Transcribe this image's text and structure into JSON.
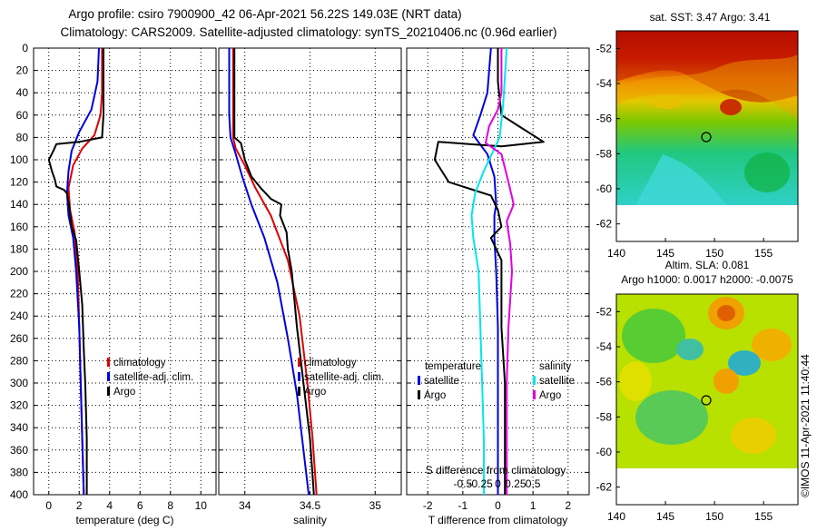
{
  "header": {
    "title_line1": "Argo profile: csiro 7900900_42 06-Apr-2021 56.22S 149.03E (NRT data)",
    "title_line2": "Climatology: CARS2009. Satellite-adjusted climatology: synTS_20210406.nc (0.96d earlier)"
  },
  "colors": {
    "climatology": "#dd0000",
    "satellite": "#0000dd",
    "argo": "#000000",
    "salinity_satellite": "#00e5ee",
    "salinity_argo": "#e000e0"
  },
  "depth_axis": {
    "ticks": [
      "0",
      "20",
      "40",
      "60",
      "80",
      "100",
      "120",
      "140",
      "160",
      "180",
      "200",
      "220",
      "240",
      "260",
      "280",
      "300",
      "320",
      "340",
      "360",
      "380",
      "400"
    ],
    "range": [
      0,
      400
    ]
  },
  "chart_data": [
    {
      "type": "line",
      "name": "temperature",
      "xlabel": "temperature (deg C)",
      "xlim": [
        -1,
        11
      ],
      "xticks": [
        {
          "v": 0,
          "t": "0"
        },
        {
          "v": 2,
          "t": "2"
        },
        {
          "v": 4,
          "t": "4"
        },
        {
          "v": 6,
          "t": "6"
        },
        {
          "v": 8,
          "t": "8"
        },
        {
          "v": 10,
          "t": "10"
        }
      ],
      "ylim": [
        0,
        400
      ],
      "legend": [
        "climatology",
        "satellite-adj. clim.",
        "Argo"
      ],
      "series": [
        {
          "name": "climatology",
          "key": "climatology",
          "points": [
            [
              3.5,
              0
            ],
            [
              3.5,
              40
            ],
            [
              3.4,
              60
            ],
            [
              3.0,
              78
            ],
            [
              2.2,
              90
            ],
            [
              1.6,
              105
            ],
            [
              1.3,
              125
            ],
            [
              1.4,
              145
            ],
            [
              1.7,
              165
            ],
            [
              1.9,
              200
            ],
            [
              2.0,
              250
            ],
            [
              2.1,
              300
            ],
            [
              2.2,
              350
            ],
            [
              2.3,
              400
            ]
          ]
        },
        {
          "name": "satellite-adj. clim.",
          "key": "satellite",
          "points": [
            [
              3.3,
              0
            ],
            [
              3.2,
              30
            ],
            [
              2.8,
              55
            ],
            [
              2.0,
              75
            ],
            [
              1.5,
              92
            ],
            [
              1.3,
              110
            ],
            [
              1.2,
              130
            ],
            [
              1.3,
              150
            ],
            [
              1.6,
              170
            ],
            [
              1.8,
              200
            ],
            [
              2.0,
              250
            ],
            [
              2.1,
              300
            ],
            [
              2.2,
              350
            ],
            [
              2.3,
              400
            ]
          ]
        },
        {
          "name": "Argo",
          "key": "argo",
          "points": [
            [
              3.6,
              0
            ],
            [
              3.6,
              60
            ],
            [
              3.5,
              80
            ],
            [
              2.0,
              84
            ],
            [
              0.5,
              86
            ],
            [
              0.3,
              92
            ],
            [
              0.0,
              100
            ],
            [
              0.2,
              110
            ],
            [
              0.4,
              118
            ],
            [
              0.5,
              124
            ],
            [
              1.0,
              127
            ],
            [
              1.2,
              130
            ],
            [
              1.3,
              138
            ],
            [
              1.4,
              148
            ],
            [
              1.5,
              160
            ],
            [
              1.8,
              172
            ],
            [
              2.0,
              200
            ],
            [
              2.2,
              230
            ],
            [
              2.3,
              270
            ],
            [
              2.4,
              300
            ],
            [
              2.5,
              350
            ],
            [
              2.5,
              400
            ]
          ]
        }
      ]
    },
    {
      "type": "line",
      "name": "salinity",
      "xlabel": "salinity",
      "xlim": [
        33.8,
        35.2
      ],
      "xticks": [
        {
          "v": 34,
          "t": "34"
        },
        {
          "v": 34.5,
          "t": "34.5"
        },
        {
          "v": 35,
          "t": "35"
        }
      ],
      "ylim": [
        0,
        400
      ],
      "legend": [
        "climatology",
        "satellite-adj. clim.",
        "Argo"
      ],
      "series": [
        {
          "name": "climatology",
          "key": "climatology",
          "points": [
            [
              33.91,
              0
            ],
            [
              33.91,
              60
            ],
            [
              33.91,
              80
            ],
            [
              33.93,
              90
            ],
            [
              34.0,
              105
            ],
            [
              34.08,
              125
            ],
            [
              34.2,
              150
            ],
            [
              34.33,
              190
            ],
            [
              34.42,
              240
            ],
            [
              34.48,
              300
            ],
            [
              34.52,
              350
            ],
            [
              34.55,
              400
            ]
          ]
        },
        {
          "name": "satellite-adj. clim.",
          "key": "satellite",
          "points": [
            [
              33.88,
              0
            ],
            [
              33.88,
              60
            ],
            [
              33.89,
              80
            ],
            [
              33.93,
              95
            ],
            [
              33.98,
              115
            ],
            [
              34.05,
              140
            ],
            [
              34.15,
              170
            ],
            [
              34.25,
              210
            ],
            [
              34.33,
              260
            ],
            [
              34.4,
              310
            ],
            [
              34.45,
              360
            ],
            [
              34.49,
              400
            ]
          ]
        },
        {
          "name": "Argo",
          "key": "argo",
          "points": [
            [
              33.92,
              0
            ],
            [
              33.92,
              80
            ],
            [
              33.97,
              85
            ],
            [
              34.0,
              100
            ],
            [
              34.05,
              115
            ],
            [
              34.12,
              125
            ],
            [
              34.2,
              135
            ],
            [
              34.28,
              140
            ],
            [
              34.27,
              150
            ],
            [
              34.32,
              165
            ],
            [
              34.33,
              180
            ],
            [
              34.36,
              200
            ],
            [
              34.4,
              250
            ],
            [
              34.45,
              300
            ],
            [
              34.5,
              350
            ],
            [
              34.53,
              400
            ]
          ]
        }
      ]
    },
    {
      "type": "line",
      "name": "differences",
      "xlabel": "T difference from climatology",
      "xlim": [
        -2.6,
        2.6
      ],
      "xticks": [
        {
          "v": -2,
          "t": "-2"
        },
        {
          "v": -1,
          "t": "-1"
        },
        {
          "v": 0,
          "t": "0"
        },
        {
          "v": 1,
          "t": "1"
        },
        {
          "v": 2,
          "t": "2"
        }
      ],
      "top_axis_label": "S difference from climatology",
      "top_ticks": [
        {
          "v": -0.5,
          "t": "-0.5"
        },
        {
          "v": -0.25,
          "t": "-0.25"
        },
        {
          "v": 0,
          "t": "0"
        },
        {
          "v": 0.25,
          "t": "0.25"
        },
        {
          "v": 0.5,
          "t": "0.5"
        }
      ],
      "top_tick_scale": 2,
      "ylim": [
        0,
        400
      ],
      "legend_temperature_title": "temperature",
      "legend_salinity_title": "salinity",
      "legend_temperature": [
        "satellite",
        "Argo"
      ],
      "legend_salinity": [
        "satellite",
        "Argo"
      ],
      "series": [
        {
          "name": "temperature satellite",
          "key": "satellite",
          "points": [
            [
              -0.2,
              0
            ],
            [
              -0.3,
              40
            ],
            [
              -0.5,
              60
            ],
            [
              -0.7,
              78
            ],
            [
              -0.3,
              95
            ],
            [
              -0.1,
              115
            ],
            [
              -0.05,
              140
            ],
            [
              -0.1,
              150
            ],
            [
              -0.1,
              170
            ],
            [
              -0.05,
              200
            ],
            [
              0,
              250
            ],
            [
              0,
              300
            ],
            [
              0,
              400
            ]
          ]
        },
        {
          "name": "temperature Argo",
          "key": "argo",
          "points": [
            [
              0.0,
              0
            ],
            [
              0.0,
              30
            ],
            [
              0.1,
              60
            ],
            [
              0.7,
              72
            ],
            [
              1.3,
              84
            ],
            [
              0.1,
              88
            ],
            [
              -1.7,
              84
            ],
            [
              -1.8,
              100
            ],
            [
              -1.4,
              120
            ],
            [
              -0.8,
              126
            ],
            [
              -0.2,
              132
            ],
            [
              0,
              145
            ],
            [
              0.1,
              160
            ],
            [
              -0.2,
              170
            ],
            [
              0.1,
              190
            ],
            [
              0.1,
              250
            ],
            [
              0.2,
              300
            ],
            [
              0.2,
              350
            ],
            [
              0.2,
              400
            ]
          ]
        },
        {
          "name": "salinity satellite",
          "key": "salinity_satellite",
          "points": [
            [
              0.25,
              0
            ],
            [
              0.15,
              50
            ],
            [
              0.05,
              80
            ],
            [
              -0.4,
              110
            ],
            [
              -0.65,
              130
            ],
            [
              -0.75,
              150
            ],
            [
              -0.7,
              170
            ],
            [
              -0.55,
              200
            ],
            [
              -0.5,
              250
            ],
            [
              -0.45,
              300
            ],
            [
              -0.4,
              350
            ],
            [
              -0.4,
              400
            ]
          ]
        },
        {
          "name": "salinity Argo",
          "key": "salinity_argo",
          "points": [
            [
              0.1,
              0
            ],
            [
              0.1,
              40
            ],
            [
              0.0,
              55
            ],
            [
              -0.25,
              70
            ],
            [
              -0.35,
              85
            ],
            [
              0.1,
              95
            ],
            [
              0.3,
              120
            ],
            [
              0.45,
              140
            ],
            [
              0.25,
              155
            ],
            [
              0.35,
              175
            ],
            [
              0.4,
              200
            ],
            [
              0.3,
              250
            ],
            [
              0.25,
              300
            ],
            [
              0.25,
              400
            ]
          ]
        }
      ]
    }
  ],
  "maps": [
    {
      "name": "sst",
      "title": "sat. SST: 3.47 Argo: 3.41",
      "xticks": [
        "140",
        "145",
        "150",
        "155"
      ],
      "yticks": [
        "-52",
        "-54",
        "-56",
        "-58",
        "-60",
        "-62"
      ]
    },
    {
      "name": "sla",
      "title_line1": "Altim. SLA: 0.081",
      "title_line2": "Argo h1000: 0.0017 h2000: -0.0075",
      "xticks": [
        "140",
        "145",
        "150",
        "155"
      ],
      "yticks": [
        "-52",
        "-54",
        "-56",
        "-58",
        "-60",
        "-62"
      ]
    }
  ],
  "credit": "©IMOS 11-Apr-2021 11:40:44"
}
